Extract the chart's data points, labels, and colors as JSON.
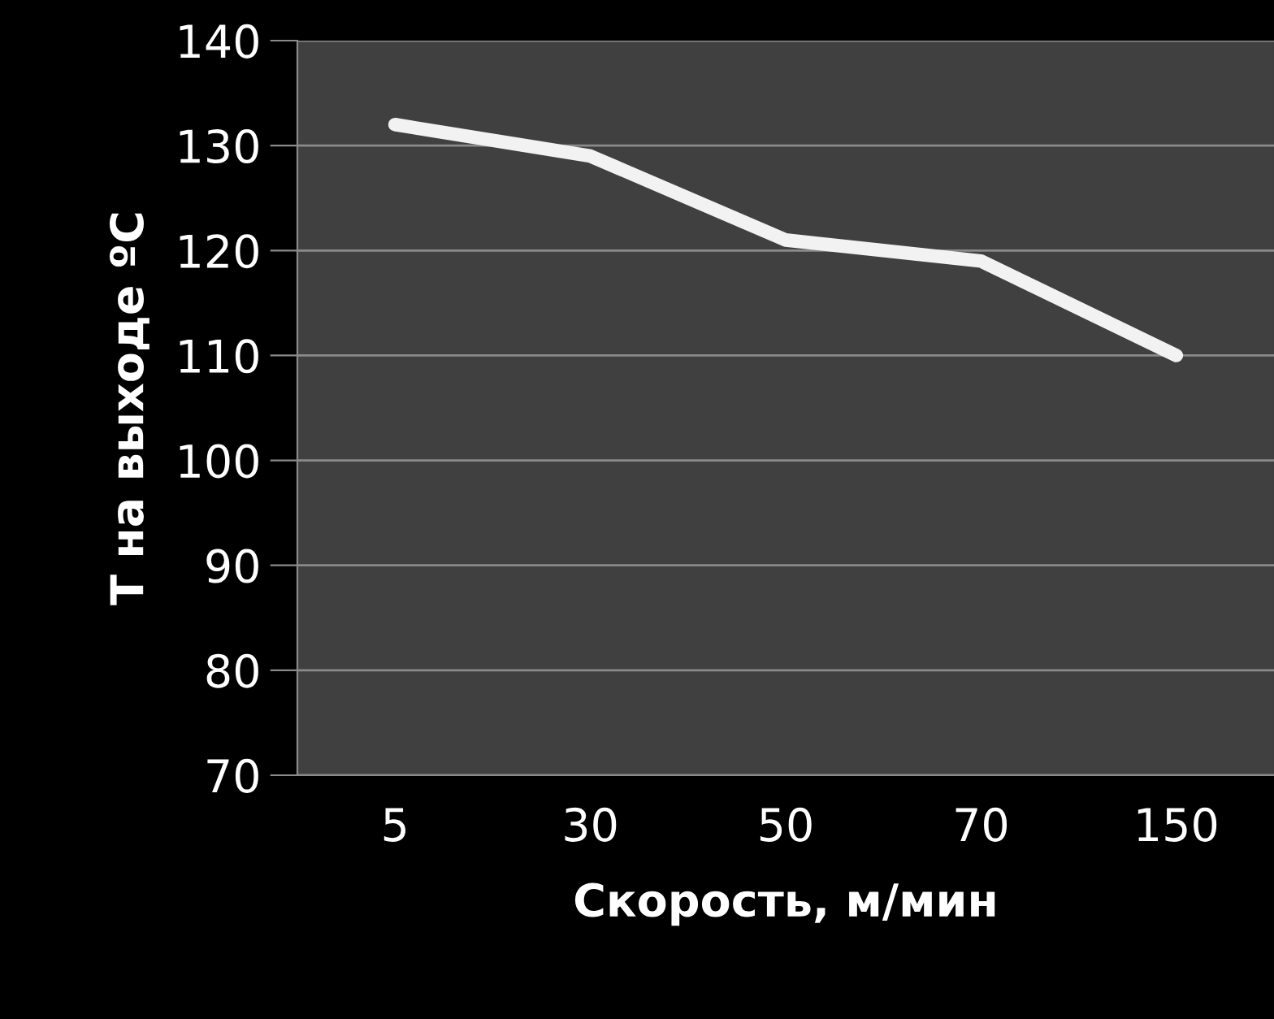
{
  "chart_data": {
    "type": "line",
    "xlabel": "Скорость, м/мин",
    "ylabel": "T на выходе ºC",
    "categories": [
      "5",
      "30",
      "50",
      "70",
      "150"
    ],
    "series": [
      {
        "color": "#f2f2f2",
        "values": [
          132,
          129,
          121,
          119,
          110
        ]
      }
    ],
    "ylim": [
      70,
      140
    ],
    "yticks": [
      70,
      80,
      90,
      100,
      110,
      120,
      130,
      140
    ],
    "grid": "y",
    "marker": "none",
    "line_style": "solid"
  }
}
